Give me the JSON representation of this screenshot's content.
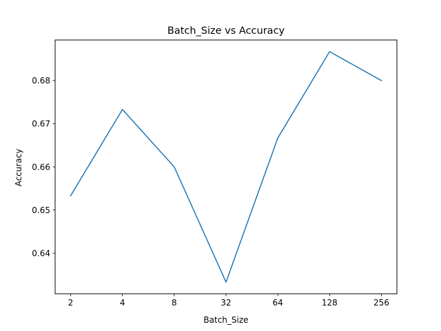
{
  "chart_data": {
    "type": "line",
    "title": "Batch_Size vs Accuracy",
    "xlabel": "Batch_Size",
    "ylabel": "Accuracy",
    "categories": [
      "2",
      "4",
      "8",
      "32",
      "64",
      "128",
      "256"
    ],
    "series": [
      {
        "values": [
          0.6533,
          0.6733,
          0.66,
          0.6333,
          0.6667,
          0.6867,
          0.68
        ],
        "color": "#1f77b4"
      }
    ],
    "yticks": [
      0.64,
      0.65,
      0.66,
      0.67,
      0.68
    ],
    "ytick_labels": [
      "0.64",
      "0.65",
      "0.66",
      "0.67",
      "0.68"
    ],
    "ylim": [
      0.6306,
      0.6894
    ],
    "grid": false,
    "legend": false
  }
}
